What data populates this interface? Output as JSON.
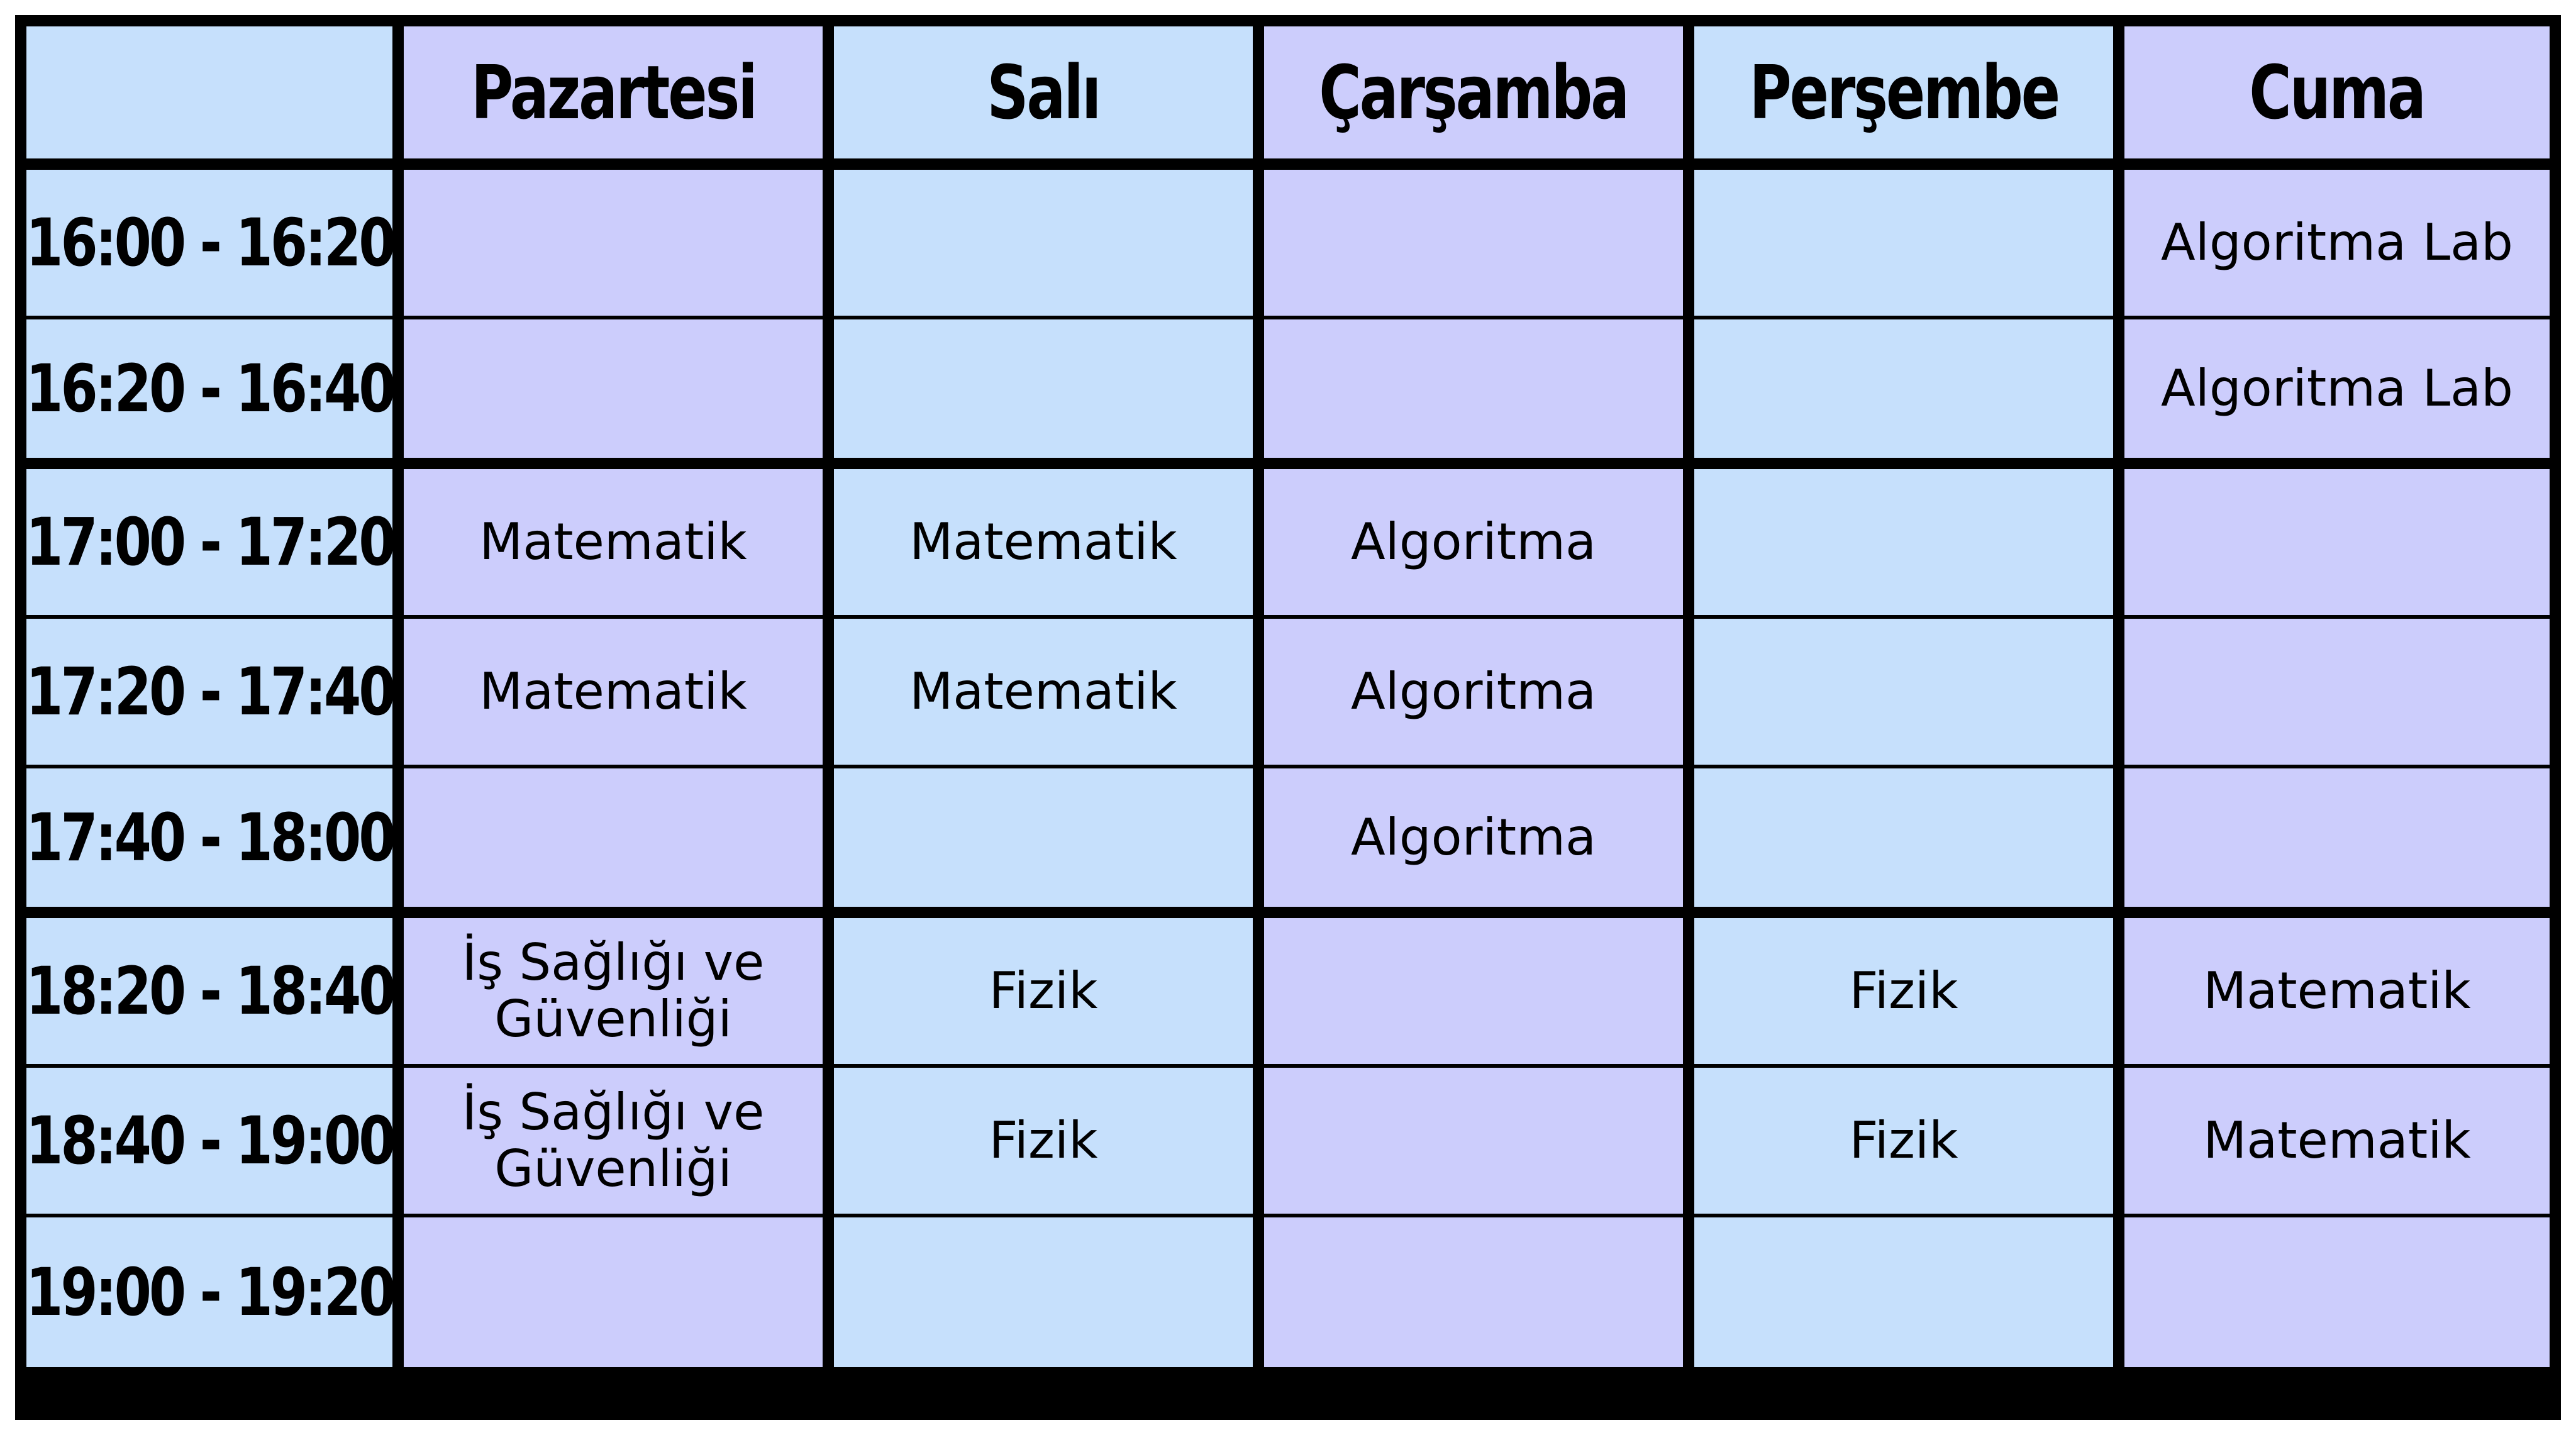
{
  "timetable": {
    "corner": "",
    "days": [
      "Pazartesi",
      "Salı",
      "Çarşamba",
      "Perşembe",
      "Cuma"
    ],
    "rows": [
      {
        "time": "16:00 - 16:20",
        "cells": [
          "",
          "",
          "",
          "",
          "Algoritma Lab"
        ]
      },
      {
        "time": "16:20 - 16:40",
        "cells": [
          "",
          "",
          "",
          "",
          "Algoritma Lab"
        ]
      },
      {
        "time": "17:00 - 17:20",
        "cells": [
          "Matematik",
          "Matematik",
          "Algoritma",
          "",
          ""
        ]
      },
      {
        "time": "17:20 - 17:40",
        "cells": [
          "Matematik",
          "Matematik",
          "Algoritma",
          "",
          ""
        ]
      },
      {
        "time": "17:40 - 18:00",
        "cells": [
          "",
          "",
          "Algoritma",
          "",
          ""
        ]
      },
      {
        "time": "18:20 - 18:40",
        "cells": [
          "İş Sağlığı ve Güvenliği",
          "Fizik",
          "",
          "Fizik",
          "Matematik"
        ]
      },
      {
        "time": "18:40 - 19:00",
        "cells": [
          "İş Sağlığı ve Güvenliği",
          "Fizik",
          "",
          "Fizik",
          "Matematik"
        ]
      },
      {
        "time": "19:00 - 19:20",
        "cells": [
          "",
          "",
          "",
          "",
          ""
        ]
      }
    ]
  },
  "colors": {
    "cell_blue": "#c6e0fc",
    "cell_purple": "#cccdfc",
    "grid_line": "#000000"
  }
}
